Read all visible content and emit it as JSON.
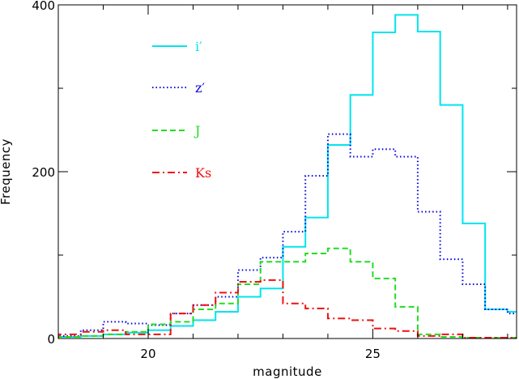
{
  "chart_data": {
    "type": "line",
    "style": "step-histogram",
    "xlabel": "magnitude",
    "ylabel": "Frequency",
    "xlim": [
      18,
      28.2
    ],
    "ylim": [
      0,
      400
    ],
    "x_ticks": [
      20,
      25
    ],
    "y_ticks": [
      0,
      200,
      400
    ],
    "grid": false,
    "legend": "top-left",
    "bin_edges": [
      18,
      18.5,
      19,
      19.5,
      20,
      20.5,
      21,
      21.5,
      22,
      22.5,
      23,
      23.5,
      24,
      24.5,
      25,
      25.5,
      26,
      26.5,
      27,
      27.5,
      28,
      28.5
    ],
    "series": [
      {
        "name": "i′",
        "color": "#00e5ee",
        "dash": "solid",
        "values": [
          2,
          3,
          5,
          7,
          10,
          15,
          22,
          32,
          50,
          60,
          110,
          145,
          232,
          292,
          367,
          388,
          368,
          280,
          138,
          35,
          32
        ]
      },
      {
        "name": "z′",
        "color": "#0000dd",
        "dash": "dotted",
        "values": [
          3,
          10,
          20,
          18,
          16,
          30,
          40,
          50,
          82,
          97,
          128,
          195,
          245,
          218,
          227,
          218,
          152,
          95,
          65,
          35,
          30
        ]
      },
      {
        "name": "J",
        "color": "#22dd22",
        "dash": "dashed",
        "values": [
          2,
          3,
          5,
          8,
          17,
          20,
          35,
          42,
          65,
          92,
          92,
          102,
          108,
          92,
          72,
          38,
          5,
          2,
          1,
          1,
          1
        ]
      },
      {
        "name": "Ks",
        "color": "#ee1111",
        "dash": "dashdot",
        "values": [
          5,
          8,
          10,
          5,
          5,
          30,
          40,
          55,
          68,
          70,
          42,
          36,
          24,
          22,
          12,
          9,
          3,
          5,
          1,
          1,
          1
        ]
      }
    ]
  }
}
